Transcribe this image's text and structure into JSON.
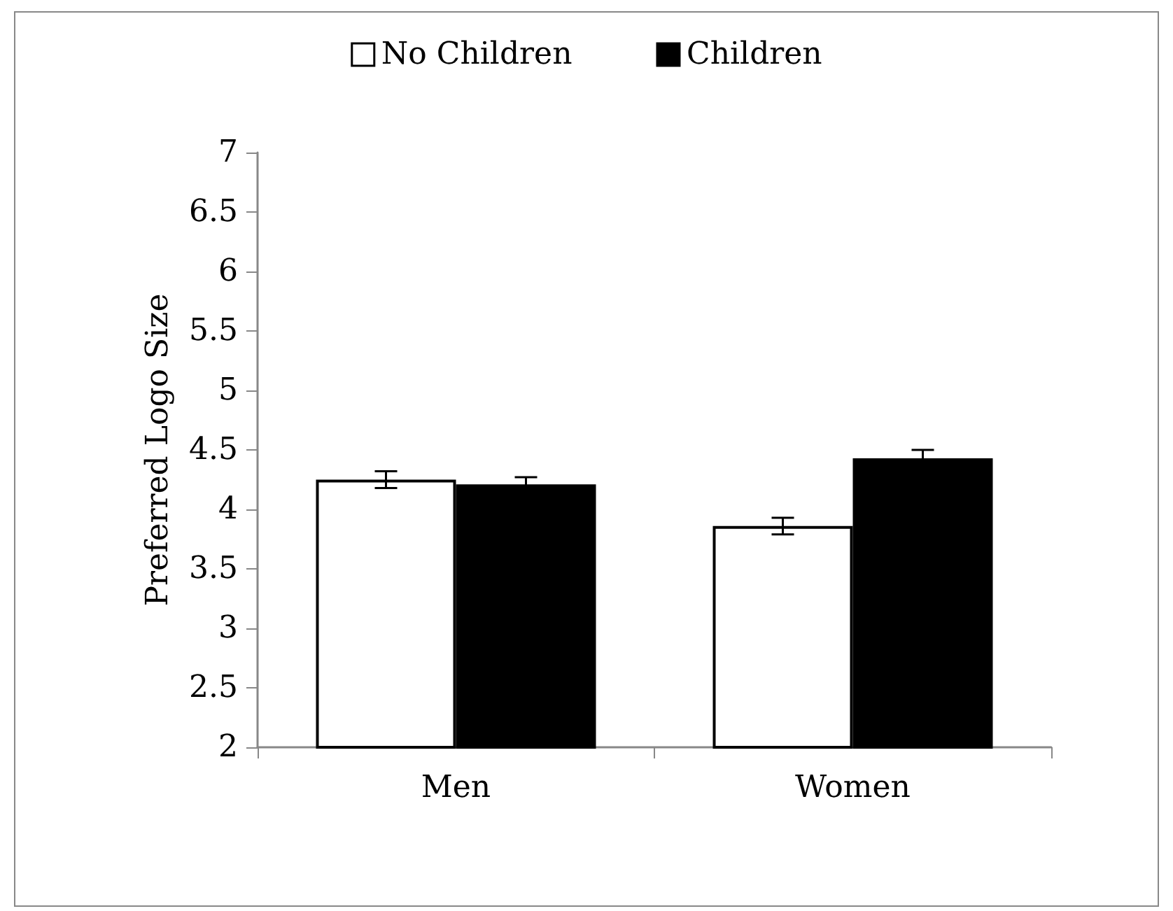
{
  "chart_data": {
    "type": "bar",
    "ylabel": "Preferred Logo Size",
    "categories": [
      "Men",
      "Women"
    ],
    "series": [
      {
        "name": "No Children",
        "color": "#ffffff",
        "values": [
          4.25,
          3.86
        ],
        "errors": [
          0.07,
          0.07
        ]
      },
      {
        "name": "Children",
        "color": "#000000",
        "values": [
          4.21,
          4.43
        ],
        "errors": [
          0.06,
          0.07
        ]
      }
    ],
    "ylim": [
      2,
      7
    ],
    "yticks": [
      2,
      2.5,
      3,
      3.5,
      4,
      4.5,
      5,
      5.5,
      6,
      6.5,
      7
    ],
    "grid": false,
    "legend": "top"
  }
}
